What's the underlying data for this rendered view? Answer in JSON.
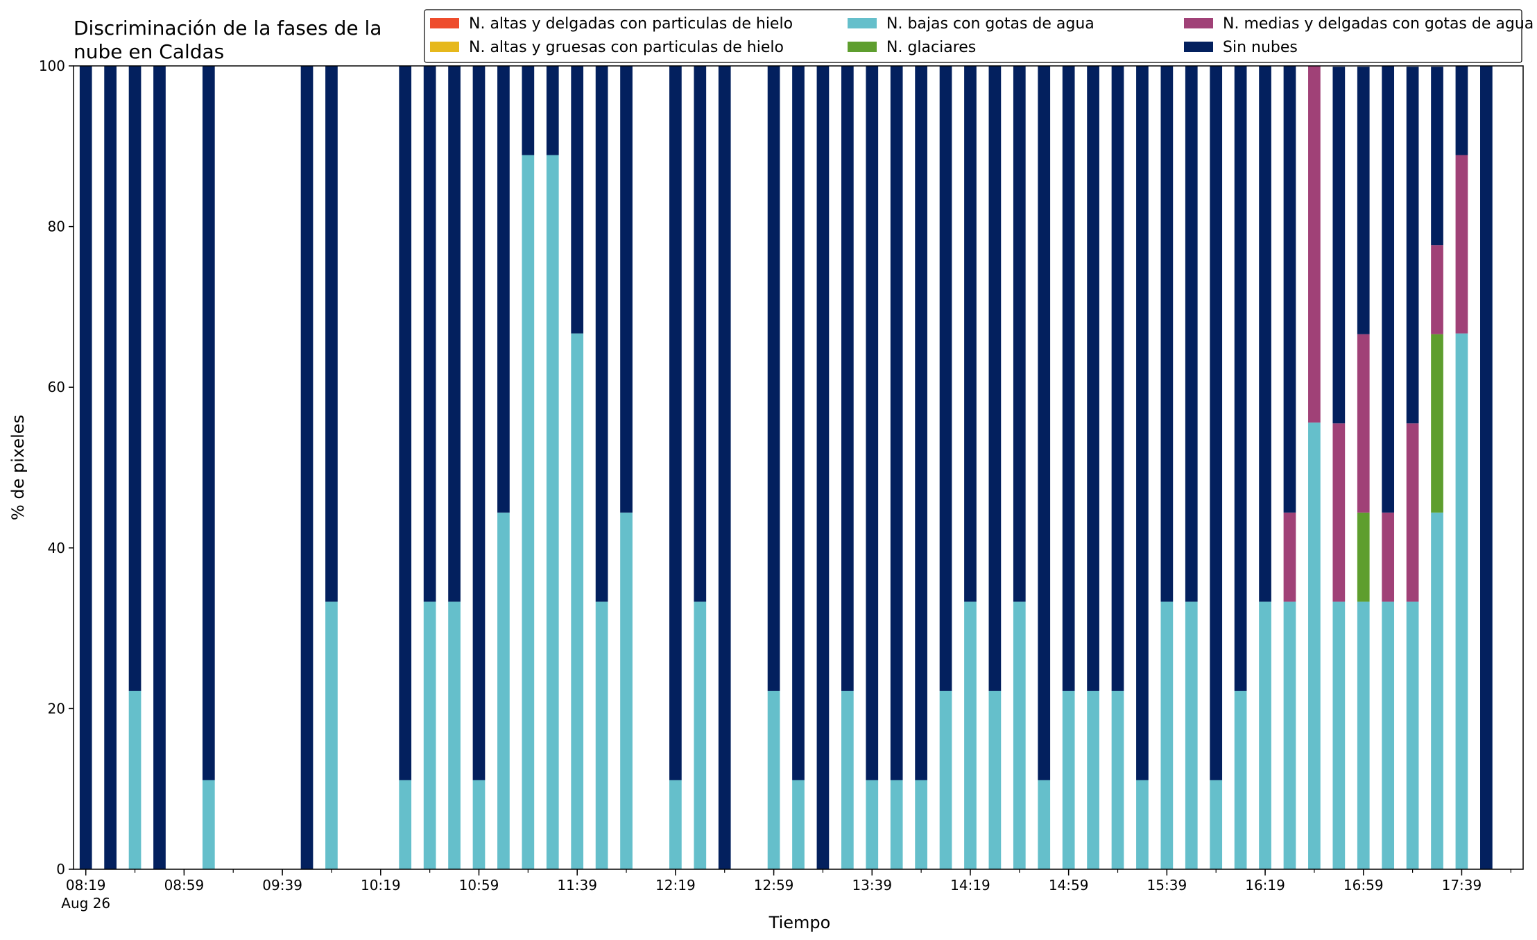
{
  "chart_data": {
    "type": "bar",
    "stacked": true,
    "title_lines": [
      "Discriminación de la fases de la",
      "nube en Caldas"
    ],
    "xlabel": "Tiempo",
    "ylabel": "% de pixeles",
    "ylim": [
      0,
      100
    ],
    "yticks": [
      0,
      20,
      40,
      60,
      80,
      100
    ],
    "x_start": "08:19",
    "x_step_minutes": 10,
    "n_slots": 59,
    "xtick_labels": [
      "08:19",
      "08:59",
      "09:39",
      "10:19",
      "10:59",
      "11:39",
      "12:19",
      "12:59",
      "13:39",
      "14:19",
      "14:59",
      "15:39",
      "16:19",
      "16:59",
      "17:39"
    ],
    "xtick_date_label": "Aug 26",
    "legend_position": "top-right",
    "series": [
      {
        "name": "N. altas y delgadas con particulas de hielo",
        "color": "#ee4c2c"
      },
      {
        "name": "N. altas y gruesas con particulas de hielo",
        "color": "#e6b81c"
      },
      {
        "name": "N. bajas con gotas de agua",
        "color": "#65bfcb"
      },
      {
        "name": "N. glaciares",
        "color": "#5e9e2e"
      },
      {
        "name": "N. medias y delgadas con gotas de agua",
        "color": "#a04177"
      },
      {
        "name": "Sin nubes",
        "color": "#03205e"
      }
    ],
    "bars": [
      {
        "time": "08:19",
        "values": [
          0,
          0,
          0,
          0,
          0,
          100
        ]
      },
      {
        "time": "08:29",
        "values": [
          0,
          0,
          0,
          0,
          0,
          100
        ]
      },
      {
        "time": "08:39",
        "values": [
          0,
          0,
          22.2,
          0,
          0,
          77.8
        ]
      },
      {
        "time": "08:49",
        "values": [
          0,
          0,
          0,
          0,
          0,
          100
        ]
      },
      {
        "time": "09:09",
        "values": [
          0,
          0,
          11.1,
          0,
          0,
          88.9
        ]
      },
      {
        "time": "09:49",
        "values": [
          0,
          0,
          0,
          0,
          0,
          100
        ]
      },
      {
        "time": "09:59",
        "values": [
          0,
          0,
          33.3,
          0,
          0,
          66.7
        ]
      },
      {
        "time": "10:29",
        "values": [
          0,
          0,
          11.1,
          0,
          0,
          88.9
        ]
      },
      {
        "time": "10:39",
        "values": [
          0,
          0,
          33.3,
          0,
          0,
          66.7
        ]
      },
      {
        "time": "10:49",
        "values": [
          0,
          0,
          33.3,
          0,
          0,
          66.7
        ]
      },
      {
        "time": "10:59",
        "values": [
          0,
          0,
          11.1,
          0,
          0,
          88.9
        ]
      },
      {
        "time": "11:09",
        "values": [
          0,
          0,
          44.4,
          0,
          0,
          55.6
        ]
      },
      {
        "time": "11:19",
        "values": [
          0,
          0,
          88.9,
          0,
          0,
          11.1
        ]
      },
      {
        "time": "11:29",
        "values": [
          0,
          0,
          88.9,
          0,
          0,
          11.1
        ]
      },
      {
        "time": "11:39",
        "values": [
          0,
          0,
          66.7,
          0,
          0,
          33.3
        ]
      },
      {
        "time": "11:49",
        "values": [
          0,
          0,
          33.3,
          0,
          0,
          66.7
        ]
      },
      {
        "time": "11:59",
        "values": [
          0,
          0,
          44.4,
          0,
          0,
          55.6
        ]
      },
      {
        "time": "12:19",
        "values": [
          0,
          0,
          11.1,
          0,
          0,
          88.9
        ]
      },
      {
        "time": "12:29",
        "values": [
          0,
          0,
          33.3,
          0,
          0,
          66.7
        ]
      },
      {
        "time": "12:39",
        "values": [
          0,
          0,
          0,
          0,
          0,
          100
        ]
      },
      {
        "time": "12:59",
        "values": [
          0,
          0,
          22.2,
          0,
          0,
          77.8
        ]
      },
      {
        "time": "13:09",
        "values": [
          0,
          0,
          11.1,
          0,
          0,
          88.9
        ]
      },
      {
        "time": "13:19",
        "values": [
          0,
          0,
          0,
          0,
          0,
          100
        ]
      },
      {
        "time": "13:29",
        "values": [
          0,
          0,
          22.2,
          0,
          0,
          77.8
        ]
      },
      {
        "time": "13:39",
        "values": [
          0,
          0,
          11.1,
          0,
          0,
          88.9
        ]
      },
      {
        "time": "13:49",
        "values": [
          0,
          0,
          11.1,
          0,
          0,
          88.9
        ]
      },
      {
        "time": "13:59",
        "values": [
          0,
          0,
          11.1,
          0,
          0,
          88.9
        ]
      },
      {
        "time": "14:09",
        "values": [
          0,
          0,
          22.2,
          0,
          0,
          77.8
        ]
      },
      {
        "time": "14:19",
        "values": [
          0,
          0,
          33.3,
          0,
          0,
          66.7
        ]
      },
      {
        "time": "14:29",
        "values": [
          0,
          0,
          22.2,
          0,
          0,
          77.8
        ]
      },
      {
        "time": "14:39",
        "values": [
          0,
          0,
          33.3,
          0,
          0,
          66.7
        ]
      },
      {
        "time": "14:49",
        "values": [
          0,
          0,
          11.1,
          0,
          0,
          88.9
        ]
      },
      {
        "time": "14:59",
        "values": [
          0,
          0,
          22.2,
          0,
          0,
          77.8
        ]
      },
      {
        "time": "15:09",
        "values": [
          0,
          0,
          22.2,
          0,
          0,
          77.8
        ]
      },
      {
        "time": "15:19",
        "values": [
          0,
          0,
          22.2,
          0,
          0,
          77.8
        ]
      },
      {
        "time": "15:29",
        "values": [
          0,
          0,
          11.1,
          0,
          0,
          88.9
        ]
      },
      {
        "time": "15:39",
        "values": [
          0,
          0,
          33.3,
          0,
          0,
          66.7
        ]
      },
      {
        "time": "15:49",
        "values": [
          0,
          0,
          33.3,
          0,
          0,
          66.7
        ]
      },
      {
        "time": "15:59",
        "values": [
          0,
          0,
          11.1,
          0,
          0,
          88.9
        ]
      },
      {
        "time": "16:09",
        "values": [
          0,
          0,
          22.2,
          0,
          0,
          77.8
        ]
      },
      {
        "time": "16:19",
        "values": [
          0,
          0,
          33.3,
          0,
          0,
          66.7
        ]
      },
      {
        "time": "16:29",
        "values": [
          0,
          0,
          33.3,
          0,
          11.1,
          55.6
        ]
      },
      {
        "time": "16:39",
        "values": [
          0,
          0,
          55.6,
          0,
          44.4,
          0
        ]
      },
      {
        "time": "16:49",
        "values": [
          0,
          0,
          33.3,
          0,
          22.2,
          44.4
        ]
      },
      {
        "time": "16:59",
        "values": [
          0,
          0,
          33.3,
          11.1,
          22.2,
          33.3
        ]
      },
      {
        "time": "17:09",
        "values": [
          0,
          0,
          33.3,
          0,
          11.1,
          55.6
        ]
      },
      {
        "time": "17:19",
        "values": [
          0,
          0,
          33.3,
          0,
          22.2,
          44.4
        ]
      },
      {
        "time": "17:29",
        "values": [
          0,
          0,
          44.4,
          22.2,
          11.1,
          22.2
        ]
      },
      {
        "time": "17:39",
        "values": [
          0,
          0,
          66.7,
          0,
          22.2,
          11.1
        ]
      },
      {
        "time": "17:49",
        "values": [
          0,
          0,
          0,
          0,
          0,
          100
        ]
      }
    ]
  }
}
